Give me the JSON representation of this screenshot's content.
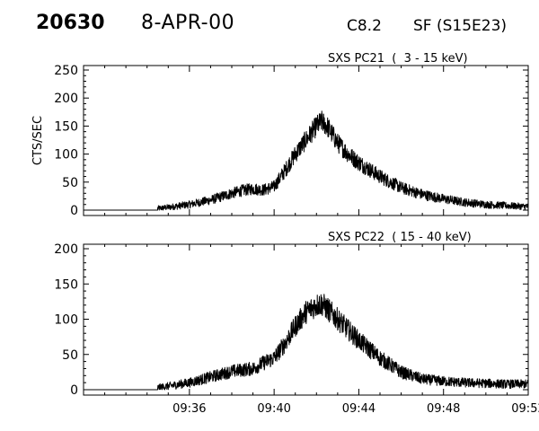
{
  "header": {
    "event_id": "20630",
    "date": "8-APR-00",
    "flare_class": "C8.2",
    "location": "SF (S15E23)"
  },
  "chart_data": [
    {
      "type": "line",
      "title": "SXS PC21  (  3 - 15 keV)",
      "ylabel": "CTS/SEC",
      "xlabel": "",
      "xlim": [
        "09:31",
        "09:52"
      ],
      "ylim": [
        0,
        250
      ],
      "yticks": [
        0,
        50,
        100,
        150,
        200,
        250
      ],
      "xticks": [
        "09:36",
        "09:40",
        "09:44",
        "09:48",
        "09:52"
      ],
      "data_start": "09:34:30",
      "x": [
        "09:31:00",
        "09:34:30",
        "09:35:00",
        "09:36:00",
        "09:37:00",
        "09:38:00",
        "09:38:30",
        "09:39:00",
        "09:39:30",
        "09:40:00",
        "09:40:30",
        "09:41:00",
        "09:41:30",
        "09:42:00",
        "09:42:15",
        "09:42:30",
        "09:43:00",
        "09:43:30",
        "09:44:00",
        "09:45:00",
        "09:46:00",
        "09:47:00",
        "09:48:00",
        "09:49:00",
        "09:50:00",
        "09:51:00",
        "09:52:00"
      ],
      "y": [
        0,
        3,
        5,
        10,
        18,
        30,
        35,
        38,
        36,
        42,
        70,
        100,
        125,
        150,
        158,
        150,
        120,
        100,
        85,
        60,
        40,
        28,
        20,
        14,
        10,
        8,
        6
      ]
    },
    {
      "type": "line",
      "title": "SXS PC22  ( 15 - 40 keV)",
      "ylabel": "",
      "xlabel": "",
      "xlim": [
        "09:31",
        "09:52"
      ],
      "ylim": [
        0,
        200
      ],
      "yticks": [
        0,
        50,
        100,
        150,
        200
      ],
      "xticks": [
        "09:36",
        "09:40",
        "09:44",
        "09:48",
        "09:52"
      ],
      "data_start": "09:34:30",
      "x": [
        "09:31:00",
        "09:34:30",
        "09:35:00",
        "09:36:00",
        "09:37:00",
        "09:38:00",
        "09:39:00",
        "09:39:30",
        "09:40:00",
        "09:40:30",
        "09:41:00",
        "09:41:30",
        "09:42:00",
        "09:42:15",
        "09:42:30",
        "09:43:00",
        "09:43:30",
        "09:44:00",
        "09:45:00",
        "09:46:00",
        "09:47:00",
        "09:48:00",
        "09:49:00",
        "09:50:00",
        "09:51:00",
        "09:52:00"
      ],
      "y": [
        0,
        3,
        5,
        10,
        18,
        26,
        30,
        38,
        45,
        65,
        90,
        110,
        120,
        122,
        115,
        100,
        85,
        70,
        45,
        25,
        15,
        12,
        10,
        9,
        8,
        8
      ]
    }
  ]
}
